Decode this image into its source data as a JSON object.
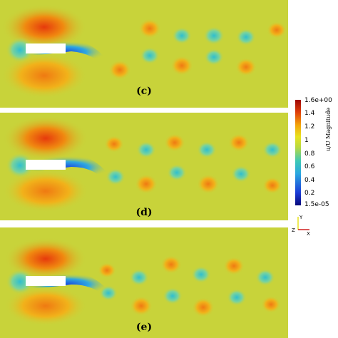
{
  "panels": [
    {
      "label": "(c)"
    },
    {
      "label": "(d)"
    },
    {
      "label": "(e)"
    }
  ],
  "colorbar": {
    "title": "u/U Magnitude",
    "max_label": "1.6e+00",
    "min_label": "1.5e-05",
    "ticks": [
      "1.4",
      "1.2",
      "1",
      "0.8",
      "0.6",
      "0.4",
      "0.2"
    ],
    "colors": [
      "#08087a",
      "#1b3cd8",
      "#2ba7e0",
      "#3ec9b6",
      "#b9d940",
      "#e8e31e",
      "#f3a50a",
      "#e0400a",
      "#9e0606"
    ]
  },
  "axes": {
    "y": "Y",
    "z": "Z",
    "x": "X"
  },
  "colors": {
    "background": "#c8d33a",
    "cylinder": "#ffffff"
  }
}
